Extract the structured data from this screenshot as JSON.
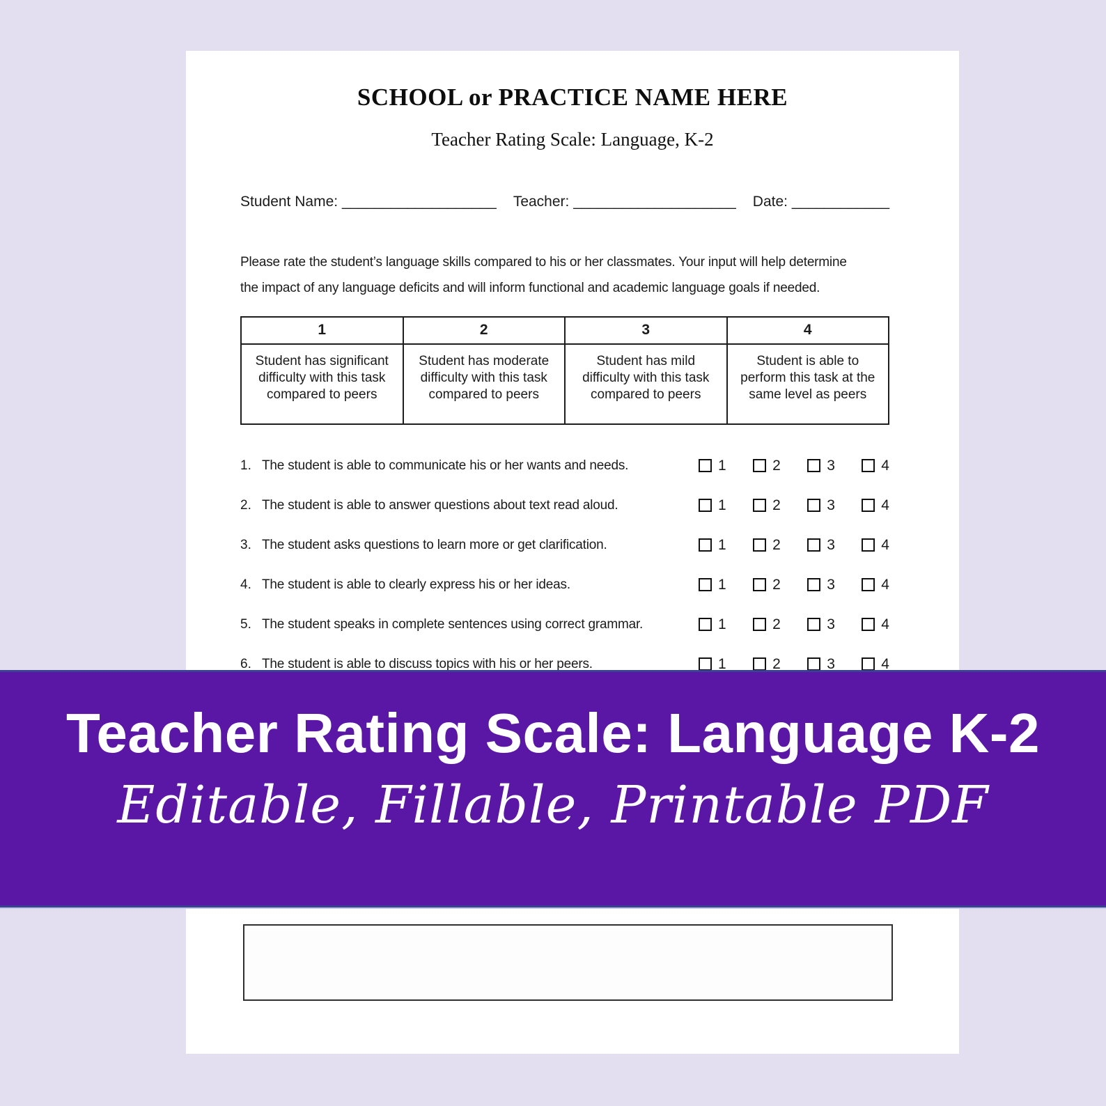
{
  "colors": {
    "background": "#e4def1",
    "page": "#ffffff",
    "banner_purple": "#5a17a6",
    "banner_edge": "#3b4291",
    "banner_text": "#ffffff",
    "ink": "#1b1b1b"
  },
  "document": {
    "school_title": "SCHOOL or PRACTICE NAME HERE",
    "form_title": "Teacher Rating Scale: Language, K-2",
    "header_fields": [
      {
        "label": "Student Name:",
        "line": "___________________"
      },
      {
        "label": "Teacher:",
        "line": "____________________"
      },
      {
        "label": "Date:",
        "line": "____________"
      }
    ],
    "instructions_line1": "Please rate the student’s language skills compared to his or her classmates. Your input will help determine",
    "instructions_line2": "the impact of any language deficits and will inform functional and academic language goals if needed.",
    "rating_scale": {
      "columns": [
        {
          "value": "1",
          "description": "Student has significant difficulty with this task compared to peers"
        },
        {
          "value": "2",
          "description": "Student has moderate difficulty with this task compared to peers"
        },
        {
          "value": "3",
          "description": "Student has mild difficulty with this task compared to peers"
        },
        {
          "value": "4",
          "description": "Student is able to perform this task at the same level as peers"
        }
      ]
    },
    "items": [
      {
        "number": "1.",
        "text": "The student is able to communicate his or her wants and needs."
      },
      {
        "number": "2.",
        "text": "The student is able to answer questions about text read aloud."
      },
      {
        "number": "3.",
        "text": "The student asks questions to learn more or get clarification."
      },
      {
        "number": "4.",
        "text": "The student is able to clearly express his or her ideas."
      },
      {
        "number": "5.",
        "text": "The student speaks in complete sentences using correct grammar."
      },
      {
        "number": "6.",
        "text": "The student is able to discuss topics with his or her peers."
      }
    ],
    "rating_options": [
      "1",
      "2",
      "3",
      "4"
    ]
  },
  "banner": {
    "title": "Teacher Rating Scale: Language K-2",
    "subtitle": "Editable, Fillable, Printable PDF"
  }
}
